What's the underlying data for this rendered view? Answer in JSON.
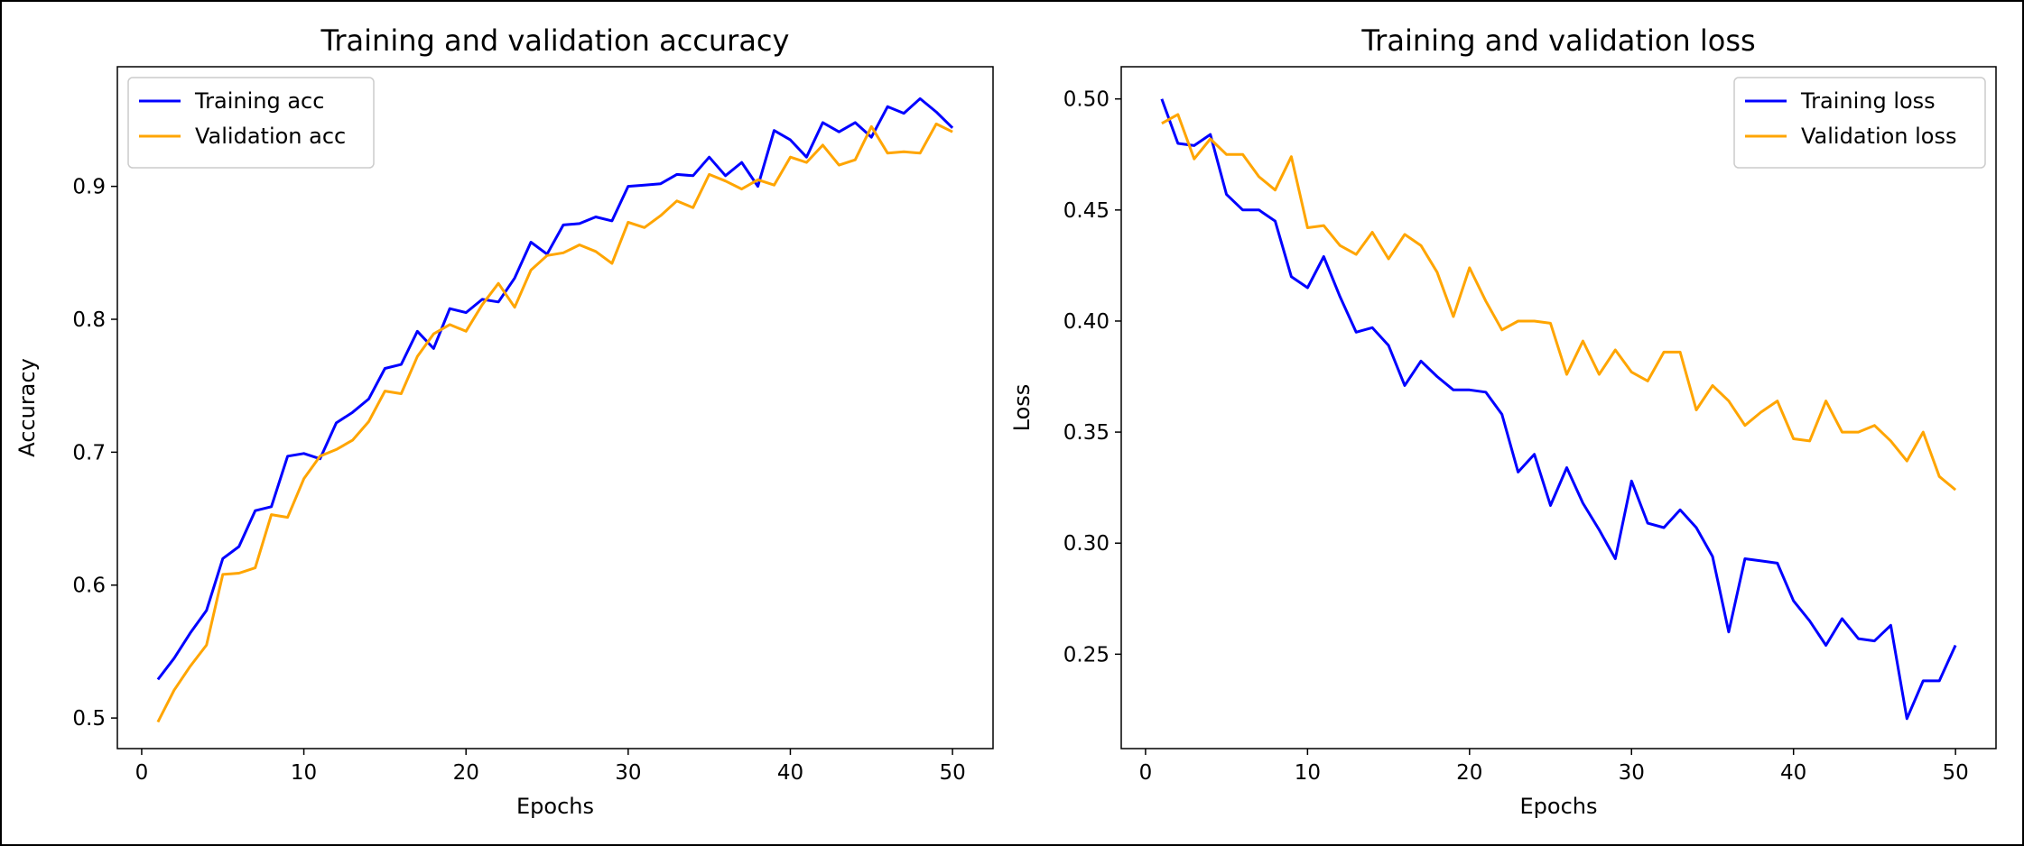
{
  "chart_data": [
    {
      "type": "line",
      "title": "Training and validation accuracy",
      "xlabel": "Epochs",
      "ylabel": "Accuracy",
      "xlim": [
        -1.5,
        52.5
      ],
      "ylim": [
        0.477,
        0.99
      ],
      "xticks": [
        0,
        10,
        20,
        30,
        40,
        50
      ],
      "yticks": [
        0.5,
        0.6,
        0.7,
        0.8,
        0.9
      ],
      "ytick_labels": [
        "0.5",
        "0.6",
        "0.7",
        "0.8",
        "0.9"
      ],
      "legend_position": "top-left",
      "grid": false,
      "x": [
        1,
        2,
        3,
        4,
        5,
        6,
        7,
        8,
        9,
        10,
        11,
        12,
        13,
        14,
        15,
        16,
        17,
        18,
        19,
        20,
        21,
        22,
        23,
        24,
        25,
        26,
        27,
        28,
        29,
        30,
        31,
        32,
        33,
        34,
        35,
        36,
        37,
        38,
        39,
        40,
        41,
        42,
        43,
        44,
        45,
        46,
        47,
        48,
        49,
        50
      ],
      "series": [
        {
          "name": "Training acc",
          "color": "#0000ff",
          "values": [
            0.529,
            0.545,
            0.564,
            0.581,
            0.62,
            0.629,
            0.656,
            0.659,
            0.697,
            0.699,
            0.695,
            0.722,
            0.73,
            0.74,
            0.763,
            0.766,
            0.791,
            0.778,
            0.808,
            0.805,
            0.815,
            0.813,
            0.831,
            0.858,
            0.849,
            0.871,
            0.872,
            0.877,
            0.874,
            0.9,
            0.901,
            0.902,
            0.909,
            0.908,
            0.922,
            0.908,
            0.918,
            0.9,
            0.942,
            0.935,
            0.922,
            0.948,
            0.941,
            0.948,
            0.937,
            0.96,
            0.955,
            0.966,
            0.956,
            0.944
          ]
        },
        {
          "name": "Validation acc",
          "color": "#ffa500",
          "values": [
            0.497,
            0.521,
            0.539,
            0.555,
            0.608,
            0.609,
            0.613,
            0.653,
            0.651,
            0.68,
            0.697,
            0.702,
            0.709,
            0.723,
            0.746,
            0.744,
            0.772,
            0.789,
            0.796,
            0.791,
            0.811,
            0.827,
            0.809,
            0.837,
            0.848,
            0.85,
            0.856,
            0.851,
            0.842,
            0.873,
            0.869,
            0.878,
            0.889,
            0.884,
            0.909,
            0.904,
            0.898,
            0.905,
            0.901,
            0.922,
            0.918,
            0.931,
            0.916,
            0.92,
            0.945,
            0.925,
            0.926,
            0.925,
            0.947,
            0.941
          ]
        }
      ]
    },
    {
      "type": "line",
      "title": "Training and validation loss",
      "xlabel": "Epochs",
      "ylabel": "Loss",
      "xlim": [
        -1.5,
        52.5
      ],
      "ylim": [
        0.2075,
        0.5145
      ],
      "xticks": [
        0,
        10,
        20,
        30,
        40,
        50
      ],
      "yticks": [
        0.25,
        0.3,
        0.35,
        0.4,
        0.45,
        0.5
      ],
      "ytick_labels": [
        "0.25",
        "0.30",
        "0.35",
        "0.40",
        "0.45",
        "0.50"
      ],
      "legend_position": "top-right",
      "grid": false,
      "x": [
        1,
        2,
        3,
        4,
        5,
        6,
        7,
        8,
        9,
        10,
        11,
        12,
        13,
        14,
        15,
        16,
        17,
        18,
        19,
        20,
        21,
        22,
        23,
        24,
        25,
        26,
        27,
        28,
        29,
        30,
        31,
        32,
        33,
        34,
        35,
        36,
        37,
        38,
        39,
        40,
        41,
        42,
        43,
        44,
        45,
        46,
        47,
        48,
        49,
        50
      ],
      "series": [
        {
          "name": "Training loss",
          "color": "#0000ff",
          "values": [
            0.5,
            0.48,
            0.479,
            0.484,
            0.457,
            0.45,
            0.45,
            0.445,
            0.42,
            0.415,
            0.429,
            0.411,
            0.395,
            0.397,
            0.389,
            0.371,
            0.382,
            0.375,
            0.369,
            0.369,
            0.368,
            0.358,
            0.332,
            0.34,
            0.317,
            0.334,
            0.318,
            0.306,
            0.293,
            0.328,
            0.309,
            0.307,
            0.315,
            0.307,
            0.294,
            0.26,
            0.293,
            0.292,
            0.291,
            0.274,
            0.265,
            0.254,
            0.266,
            0.257,
            0.256,
            0.263,
            0.221,
            0.238,
            0.238,
            0.254
          ]
        },
        {
          "name": "Validation loss",
          "color": "#ffa500",
          "values": [
            0.489,
            0.493,
            0.473,
            0.482,
            0.475,
            0.475,
            0.465,
            0.459,
            0.474,
            0.442,
            0.443,
            0.434,
            0.43,
            0.44,
            0.428,
            0.439,
            0.434,
            0.422,
            0.402,
            0.424,
            0.409,
            0.396,
            0.4,
            0.4,
            0.399,
            0.376,
            0.391,
            0.376,
            0.387,
            0.377,
            0.373,
            0.386,
            0.386,
            0.36,
            0.371,
            0.364,
            0.353,
            0.359,
            0.364,
            0.347,
            0.346,
            0.364,
            0.35,
            0.35,
            0.353,
            0.346,
            0.337,
            0.35,
            0.33,
            0.324
          ]
        }
      ]
    }
  ]
}
